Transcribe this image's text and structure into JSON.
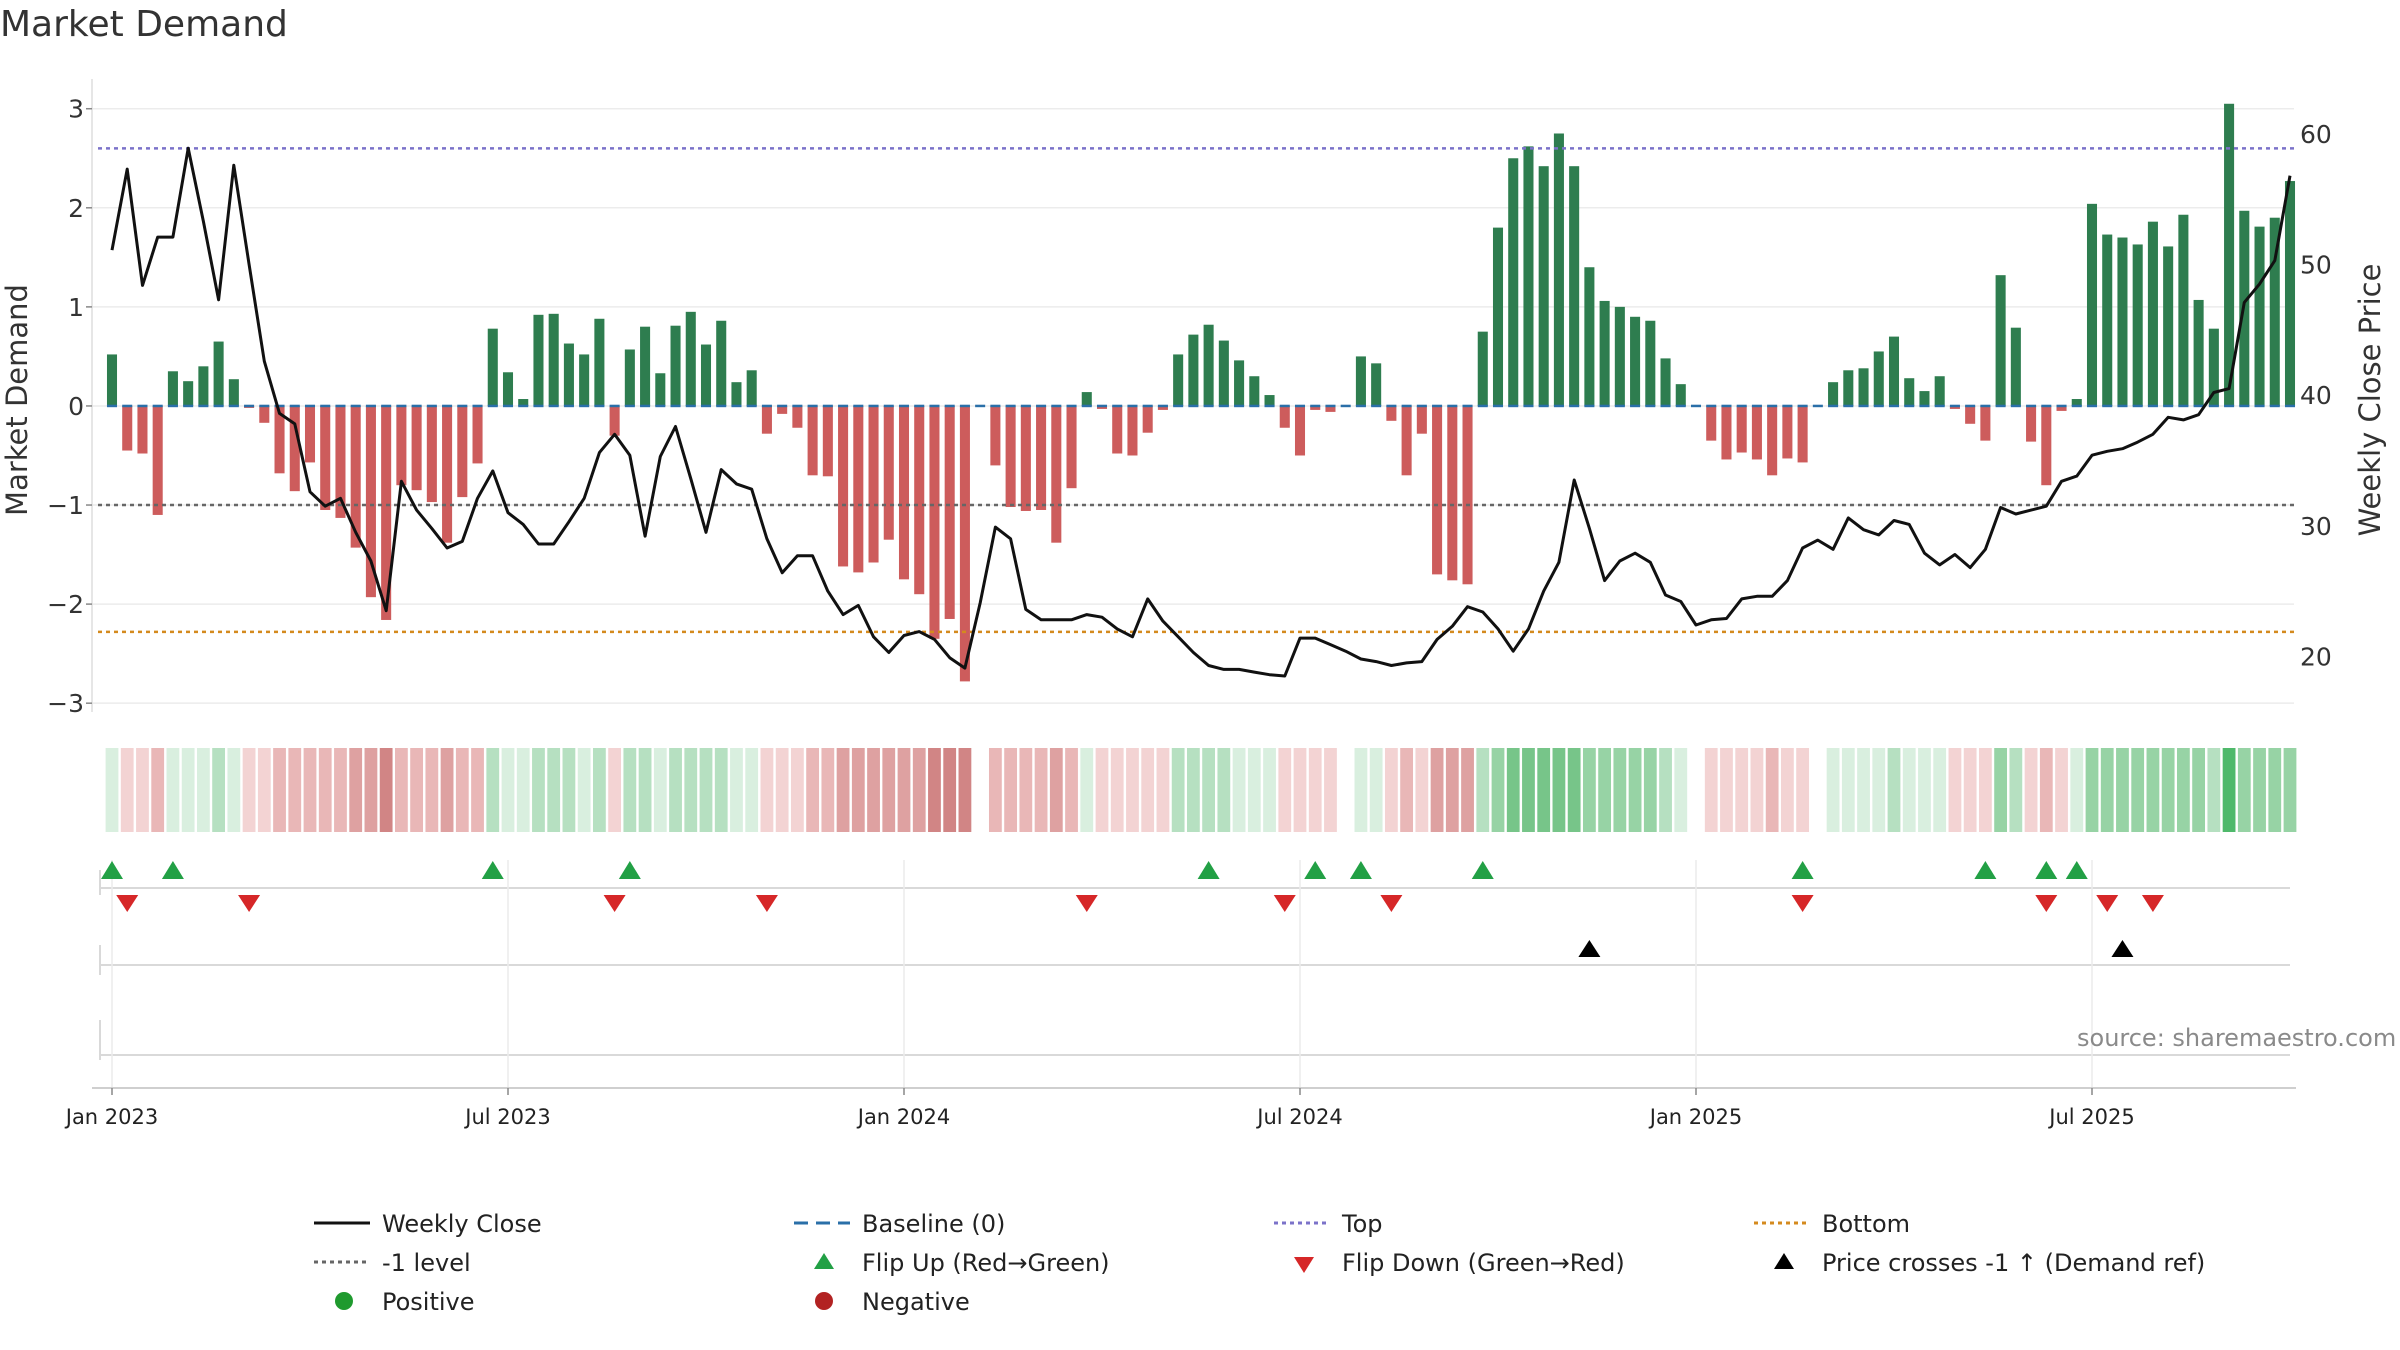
{
  "title": "Market Demand",
  "source": "source: sharemaestro.com",
  "colors": {
    "positive": "#2e7d4f",
    "negative": "#cd5c5c",
    "price": "#111111",
    "top": "#7b72c9",
    "bottom": "#d48a1e",
    "minus1": "#666666",
    "baseline": "#2a6fa8",
    "flip_up": "#22a045",
    "flip_down": "#d62728",
    "cross": "#000000",
    "legend_positive": "#1f9a2e",
    "legend_negative": "#b22222"
  },
  "legend": {
    "weekly_close": "Weekly Close",
    "baseline": "Baseline (0)",
    "top": "Top",
    "bottom": "Bottom",
    "minus1": "-1 level",
    "flip_up": "Flip Up (Red→Green)",
    "flip_down": "Flip Down (Green→Red)",
    "cross": "Price crosses -1 ↑ (Demand ref)",
    "positive": "Positive",
    "negative": "Negative"
  },
  "chart_data": {
    "type": "bar",
    "title": "Market Demand",
    "ylabel": "Market Demand",
    "y2label": "Weekly Close Price",
    "ylim": [
      -3.2,
      3.3
    ],
    "y2lim": [
      14.9,
      64.2
    ],
    "yticks": [
      3,
      2,
      1,
      0,
      -1,
      -2,
      -3
    ],
    "yticklabels": [
      "3",
      "2",
      "1",
      "0",
      "−1",
      "−2",
      "−3"
    ],
    "y2ticks": [
      60,
      50,
      40,
      30,
      20
    ],
    "y2ticklabels": [
      "60",
      "50",
      "40",
      "30",
      "20"
    ],
    "xticks": [
      0,
      26,
      52,
      78,
      104,
      130
    ],
    "xticklabels": [
      "Jan 2023",
      "Jul 2023",
      "Jan 2024",
      "Jul 2024",
      "Jan 2025",
      "Jul 2025"
    ],
    "levels": {
      "top": 2.6,
      "bottom": -2.28,
      "minus1": -1.0,
      "baseline": 0
    },
    "weeks": 144,
    "demand": [
      0.52,
      -0.45,
      -0.48,
      -1.1,
      0.35,
      0.25,
      0.4,
      0.65,
      0.27,
      -0.02,
      -0.17,
      -0.68,
      -0.86,
      -0.57,
      -1.05,
      -1.13,
      -1.43,
      -1.93,
      -2.16,
      -0.8,
      -0.85,
      -0.97,
      -1.38,
      -0.92,
      -0.58,
      0.78,
      0.34,
      0.07,
      0.92,
      0.93,
      0.63,
      0.52,
      0.88,
      -0.3,
      0.57,
      0.8,
      0.33,
      0.81,
      0.95,
      0.62,
      0.86,
      0.24,
      0.36,
      -0.28,
      -0.08,
      -0.22,
      -0.7,
      -0.71,
      -1.62,
      -1.68,
      -1.58,
      -1.35,
      -1.75,
      -1.9,
      -2.35,
      -2.15,
      -2.78,
      0.0,
      -0.6,
      -1.02,
      -1.06,
      -1.05,
      -1.38,
      -0.83,
      0.14,
      -0.03,
      -0.48,
      -0.5,
      -0.27,
      -0.04,
      0.52,
      0.72,
      0.82,
      0.66,
      0.46,
      0.3,
      0.11,
      -0.22,
      -0.5,
      -0.04,
      -0.06,
      0.0,
      0.5,
      0.43,
      -0.15,
      -0.7,
      -0.28,
      -1.7,
      -1.76,
      -1.8,
      0.75,
      1.8,
      2.5,
      2.62,
      2.42,
      2.75,
      2.42,
      1.4,
      1.06,
      1.0,
      0.9,
      0.86,
      0.48,
      0.22,
      0.0,
      -0.35,
      -0.54,
      -0.47,
      -0.54,
      -0.7,
      -0.53,
      -0.57,
      0.0,
      0.24,
      0.36,
      0.38,
      0.55,
      0.7,
      0.28,
      0.15,
      0.3,
      -0.03,
      -0.18,
      -0.35,
      1.32,
      0.79,
      -0.36,
      -0.8,
      -0.05,
      0.07,
      2.04,
      1.73,
      1.7,
      1.63,
      1.86,
      1.61,
      1.93,
      1.07,
      0.78,
      3.05,
      1.97,
      1.81,
      1.9,
      2.27
    ],
    "price": [
      51.1,
      57.3,
      48.4,
      52.1,
      52.1,
      58.9,
      53.3,
      47.3,
      57.6,
      50.0,
      42.6,
      38.6,
      37.8,
      32.6,
      31.5,
      32.1,
      29.5,
      27.3,
      23.5,
      33.4,
      31.2,
      29.8,
      28.3,
      28.8,
      32.1,
      34.2,
      31.0,
      30.1,
      28.6,
      28.6,
      30.3,
      32.1,
      35.6,
      37.0,
      35.4,
      29.2,
      35.3,
      37.6,
      33.6,
      29.5,
      34.3,
      33.2,
      32.8,
      29.0,
      26.4,
      27.7,
      27.7,
      25.0,
      23.2,
      23.9,
      21.5,
      20.3,
      21.6,
      21.9,
      21.3,
      19.9,
      19.1,
      24.1,
      29.9,
      29.0,
      23.6,
      22.8,
      22.8,
      22.8,
      23.2,
      23.0,
      22.1,
      21.5,
      24.4,
      22.7,
      21.5,
      20.3,
      19.3,
      19.0,
      19.0,
      18.8,
      18.6,
      18.5,
      21.4,
      21.4,
      20.9,
      20.4,
      19.8,
      19.6,
      19.3,
      19.5,
      19.6,
      21.3,
      22.3,
      23.8,
      23.4,
      22.1,
      20.4,
      22.1,
      25.0,
      27.2,
      33.5,
      29.8,
      25.8,
      27.3,
      27.9,
      27.2,
      24.7,
      24.2,
      22.4,
      22.8,
      22.9,
      24.4,
      24.6,
      24.6,
      25.8,
      28.3,
      28.9,
      28.2,
      30.6,
      29.7,
      29.3,
      30.4,
      30.1,
      27.9,
      27.0,
      27.8,
      26.8,
      28.2,
      31.4,
      30.9,
      31.2,
      31.5,
      33.4,
      33.8,
      35.4,
      35.7,
      35.9,
      36.4,
      37.0,
      38.3,
      38.1,
      38.5,
      40.2,
      40.5,
      47.1,
      48.5,
      50.3,
      56.8
    ],
    "strip_levels": [
      1,
      -1,
      -1,
      -2,
      1,
      1,
      1,
      2,
      1,
      -1,
      -1,
      -2,
      -2,
      -2,
      -2,
      -2,
      -3,
      -3,
      -4,
      -2,
      -2,
      -2,
      -3,
      -2,
      -2,
      2,
      1,
      1,
      2,
      2,
      2,
      1,
      2,
      -1,
      2,
      2,
      1,
      2,
      2,
      2,
      2,
      1,
      1,
      -1,
      -1,
      -1,
      -2,
      -2,
      -3,
      -3,
      -3,
      -3,
      -3,
      -3,
      -4,
      -4,
      -4,
      0,
      -2,
      -2,
      -2,
      -2,
      -3,
      -2,
      1,
      -1,
      -1,
      -1,
      -1,
      -1,
      2,
      2,
      2,
      2,
      1,
      1,
      1,
      -1,
      -1,
      -1,
      -1,
      0,
      1,
      1,
      -1,
      -2,
      -1,
      -3,
      -3,
      -3,
      2,
      3,
      4,
      4,
      4,
      4,
      4,
      3,
      3,
      3,
      3,
      3,
      2,
      1,
      0,
      -1,
      -1,
      -1,
      -1,
      -2,
      -1,
      -1,
      0,
      1,
      1,
      1,
      1,
      2,
      1,
      1,
      1,
      -1,
      -1,
      -1,
      3,
      2,
      -1,
      -2,
      -1,
      1,
      3,
      3,
      3,
      3,
      3,
      3,
      3,
      3,
      2,
      5,
      3,
      3,
      3,
      3
    ],
    "flip_up": [
      0,
      4,
      25,
      34,
      72,
      79,
      82,
      90,
      111,
      123,
      127,
      129
    ],
    "flip_down": [
      1,
      9,
      33,
      43,
      64,
      77,
      84,
      111,
      127,
      131,
      134
    ],
    "price_cross": [
      97,
      132
    ]
  }
}
